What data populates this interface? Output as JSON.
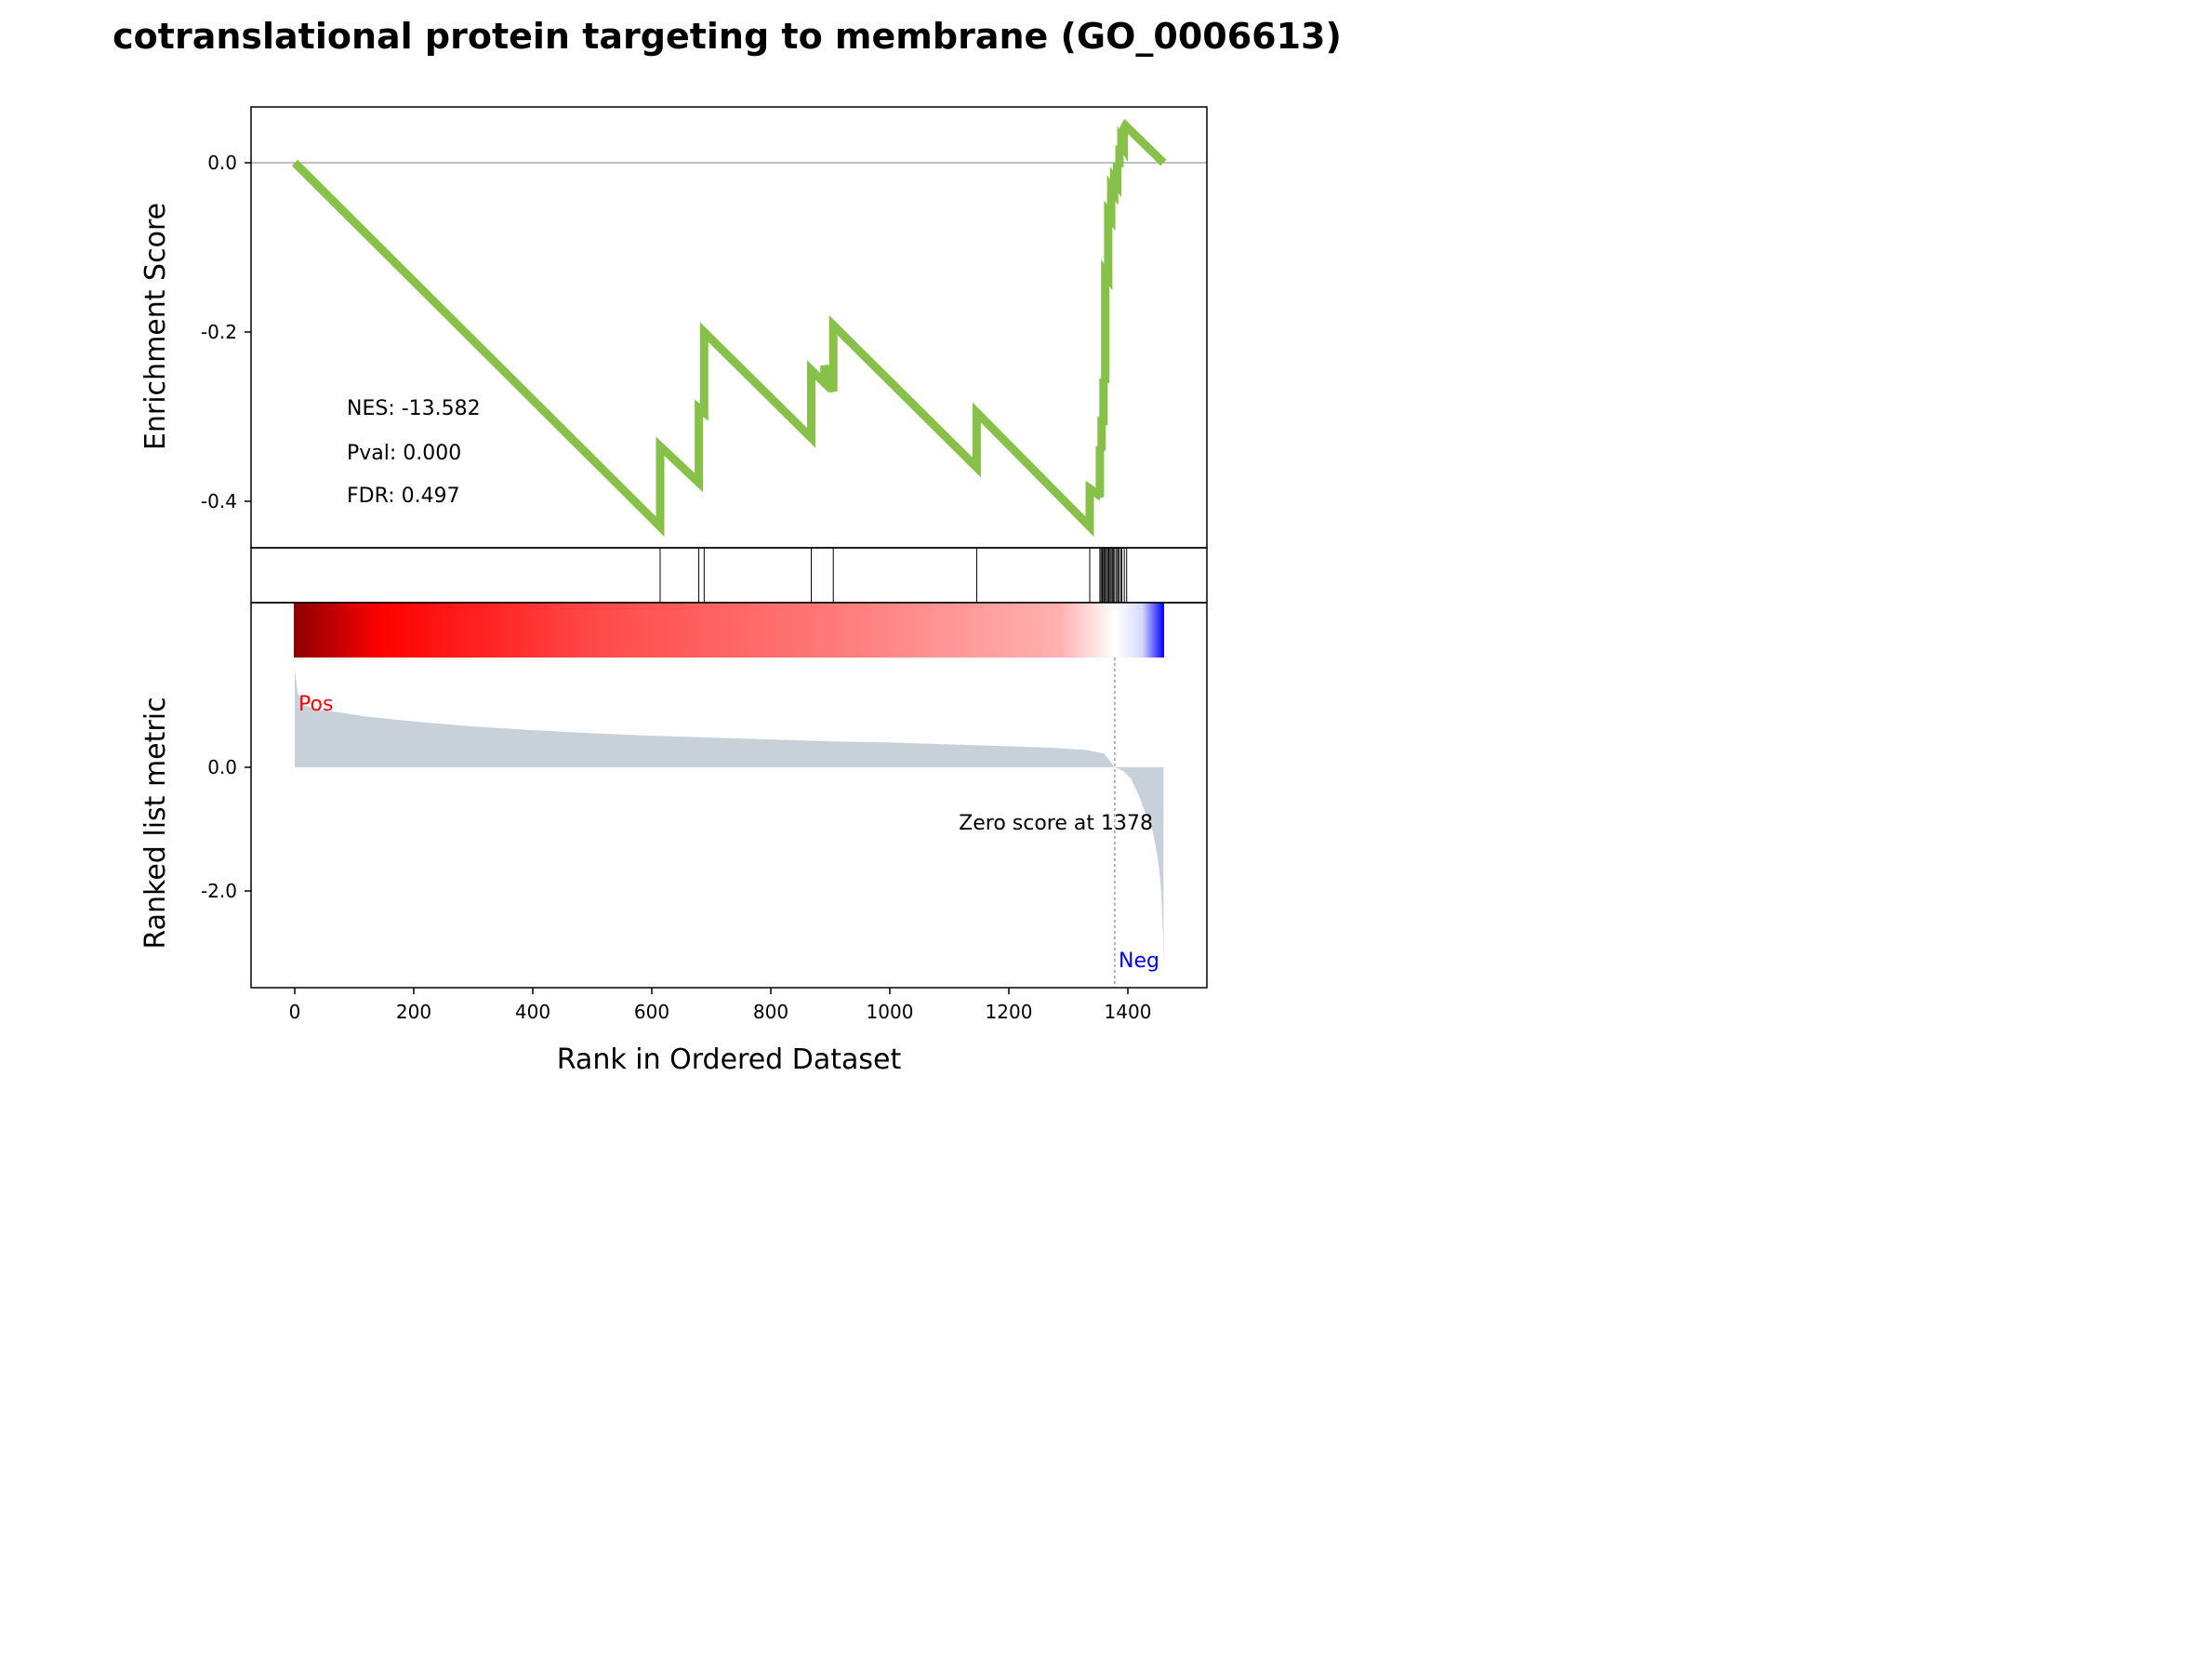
{
  "chart_data": {
    "type": "line",
    "title": "cotranslational protein targeting to membrane (GO_0006613)",
    "xlabel": "Rank in Ordered Dataset",
    "x_ticks": [
      "0",
      "200",
      "400",
      "600",
      "800",
      "1000",
      "1200",
      "1400"
    ],
    "xlim": [
      -72,
      1533
    ],
    "enrichment": {
      "ylabel": "Enrichment Score",
      "y_ticks": [
        "0.0",
        "-0.2",
        "-0.4"
      ],
      "ylim": [
        -0.455,
        0.066
      ],
      "color": "#88c149",
      "points": [
        [
          0,
          0.0
        ],
        [
          614,
          -0.43
        ],
        [
          614,
          -0.335
        ],
        [
          679,
          -0.378
        ],
        [
          679,
          -0.29
        ],
        [
          688,
          -0.295
        ],
        [
          688,
          -0.2
        ],
        [
          868,
          -0.325
        ],
        [
          868,
          -0.245
        ],
        [
          890,
          -0.26
        ],
        [
          890,
          -0.24
        ],
        [
          905,
          -0.27
        ],
        [
          905,
          -0.192
        ],
        [
          1146,
          -0.36
        ],
        [
          1146,
          -0.295
        ],
        [
          1336,
          -0.43
        ],
        [
          1336,
          -0.385
        ],
        [
          1346,
          -0.39
        ],
        [
          1346,
          -0.385
        ],
        [
          1353,
          -0.395
        ],
        [
          1353,
          -0.335
        ],
        [
          1356,
          -0.34
        ],
        [
          1356,
          -0.3
        ],
        [
          1359,
          -0.31
        ],
        [
          1359,
          -0.255
        ],
        [
          1362,
          -0.26
        ],
        [
          1362,
          -0.13
        ],
        [
          1367,
          -0.135
        ],
        [
          1367,
          -0.06
        ],
        [
          1372,
          -0.065
        ],
        [
          1372,
          -0.03
        ],
        [
          1377,
          -0.035
        ],
        [
          1377,
          -0.02
        ],
        [
          1382,
          -0.025
        ],
        [
          1382,
          0.0
        ],
        [
          1386,
          -0.005
        ],
        [
          1386,
          0.02
        ],
        [
          1389,
          0.015
        ],
        [
          1389,
          0.025
        ],
        [
          1393,
          0.02
        ],
        [
          1393,
          0.04
        ],
        [
          1396,
          0.044
        ],
        [
          1460,
          0.0
        ]
      ],
      "annotations": {
        "nes": "NES: -13.582",
        "pval": "Pval: 0.000",
        "fdr": "FDR: 0.497"
      }
    },
    "hits": [
      614,
      679,
      688,
      868,
      905,
      1146,
      1336,
      1353,
      1355,
      1357,
      1358,
      1360,
      1362,
      1364,
      1366,
      1368,
      1370,
      1372,
      1374,
      1376,
      1378,
      1381,
      1383,
      1385,
      1388,
      1390,
      1394,
      1398
    ],
    "ranked_metric": {
      "ylabel": "Ranked list metric",
      "y_ticks": [
        "0.0",
        "-2.0"
      ],
      "ylim": [
        -3.6,
        0.0
      ],
      "fill_color": "#c8d1da",
      "curve": [
        [
          0,
          1.58
        ],
        [
          5,
          1.2
        ],
        [
          15,
          1.0
        ],
        [
          40,
          0.93
        ],
        [
          80,
          0.88
        ],
        [
          120,
          0.82
        ],
        [
          200,
          0.74
        ],
        [
          300,
          0.66
        ],
        [
          400,
          0.6
        ],
        [
          500,
          0.55
        ],
        [
          600,
          0.51
        ],
        [
          700,
          0.48
        ],
        [
          800,
          0.45
        ],
        [
          900,
          0.42
        ],
        [
          1000,
          0.4
        ],
        [
          1100,
          0.37
        ],
        [
          1200,
          0.34
        ],
        [
          1280,
          0.31
        ],
        [
          1330,
          0.28
        ],
        [
          1360,
          0.22
        ],
        [
          1378,
          0.0
        ],
        [
          1392,
          -0.06
        ],
        [
          1405,
          -0.18
        ],
        [
          1418,
          -0.45
        ],
        [
          1428,
          -0.7
        ],
        [
          1436,
          -0.85
        ],
        [
          1442,
          -1.05
        ],
        [
          1448,
          -1.35
        ],
        [
          1452,
          -1.6
        ],
        [
          1456,
          -2.0
        ],
        [
          1459,
          -2.7
        ],
        [
          1460,
          -3.35
        ]
      ],
      "zero_cross": 1378,
      "zero_label": "Zero score at 1378",
      "pos_label": "Pos",
      "neg_label": "Neg",
      "pos_color": "#ff0000",
      "neg_color": "#0000ff"
    },
    "colorbar": {
      "stops": [
        "#8b0000",
        "#ff0000",
        "#ff4646",
        "#ff7878",
        "#ffaaaa",
        "#ffffff",
        "#dcdcff",
        "#0000ff"
      ]
    }
  }
}
